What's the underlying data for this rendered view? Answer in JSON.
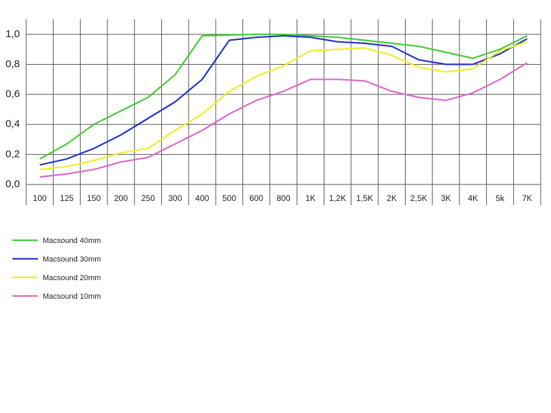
{
  "chart_data": {
    "type": "line",
    "categories": [
      "100",
      "125",
      "150",
      "200",
      "250",
      "300",
      "400",
      "500",
      "600",
      "800",
      "1K",
      "1,2K",
      "1,5K",
      "2K",
      "2,5K",
      "3K",
      "4K",
      "5k",
      "7K"
    ],
    "series": [
      {
        "name": "Macsound 40mm",
        "color": "#44cc33",
        "values": [
          0.17,
          0.27,
          0.4,
          0.49,
          0.58,
          0.73,
          0.99,
          0.995,
          1.0,
          1.0,
          0.99,
          0.98,
          0.96,
          0.94,
          0.92,
          0.88,
          0.84,
          0.9,
          0.99
        ]
      },
      {
        "name": "Macsound 30mm",
        "color": "#2233cc",
        "values": [
          0.13,
          0.17,
          0.24,
          0.33,
          0.44,
          0.55,
          0.7,
          0.96,
          0.98,
          0.99,
          0.98,
          0.95,
          0.94,
          0.92,
          0.83,
          0.8,
          0.8,
          0.87,
          0.97
        ]
      },
      {
        "name": "Macsound 20mm",
        "color": "#eeee22",
        "values": [
          0.1,
          0.12,
          0.16,
          0.21,
          0.24,
          0.36,
          0.47,
          0.62,
          0.72,
          0.79,
          0.89,
          0.9,
          0.91,
          0.86,
          0.78,
          0.75,
          0.77,
          0.89,
          0.95
        ]
      },
      {
        "name": "Macsound 10mm",
        "color": "#dd66cc",
        "values": [
          0.05,
          0.07,
          0.1,
          0.15,
          0.18,
          0.27,
          0.36,
          0.47,
          0.56,
          0.62,
          0.7,
          0.7,
          0.69,
          0.62,
          0.58,
          0.56,
          0.61,
          0.7,
          0.81
        ]
      }
    ],
    "ylim": [
      0,
      1.1
    ],
    "yticks": [
      {
        "value": 0,
        "label": "0,0"
      },
      {
        "value": 0.2,
        "label": "0,2"
      },
      {
        "value": 0.4,
        "label": "0,4"
      },
      {
        "value": 0.6,
        "label": "0,6"
      },
      {
        "value": 0.8,
        "label": "0,8"
      },
      {
        "value": 1.0,
        "label": "1,0"
      }
    ],
    "grid": true
  }
}
